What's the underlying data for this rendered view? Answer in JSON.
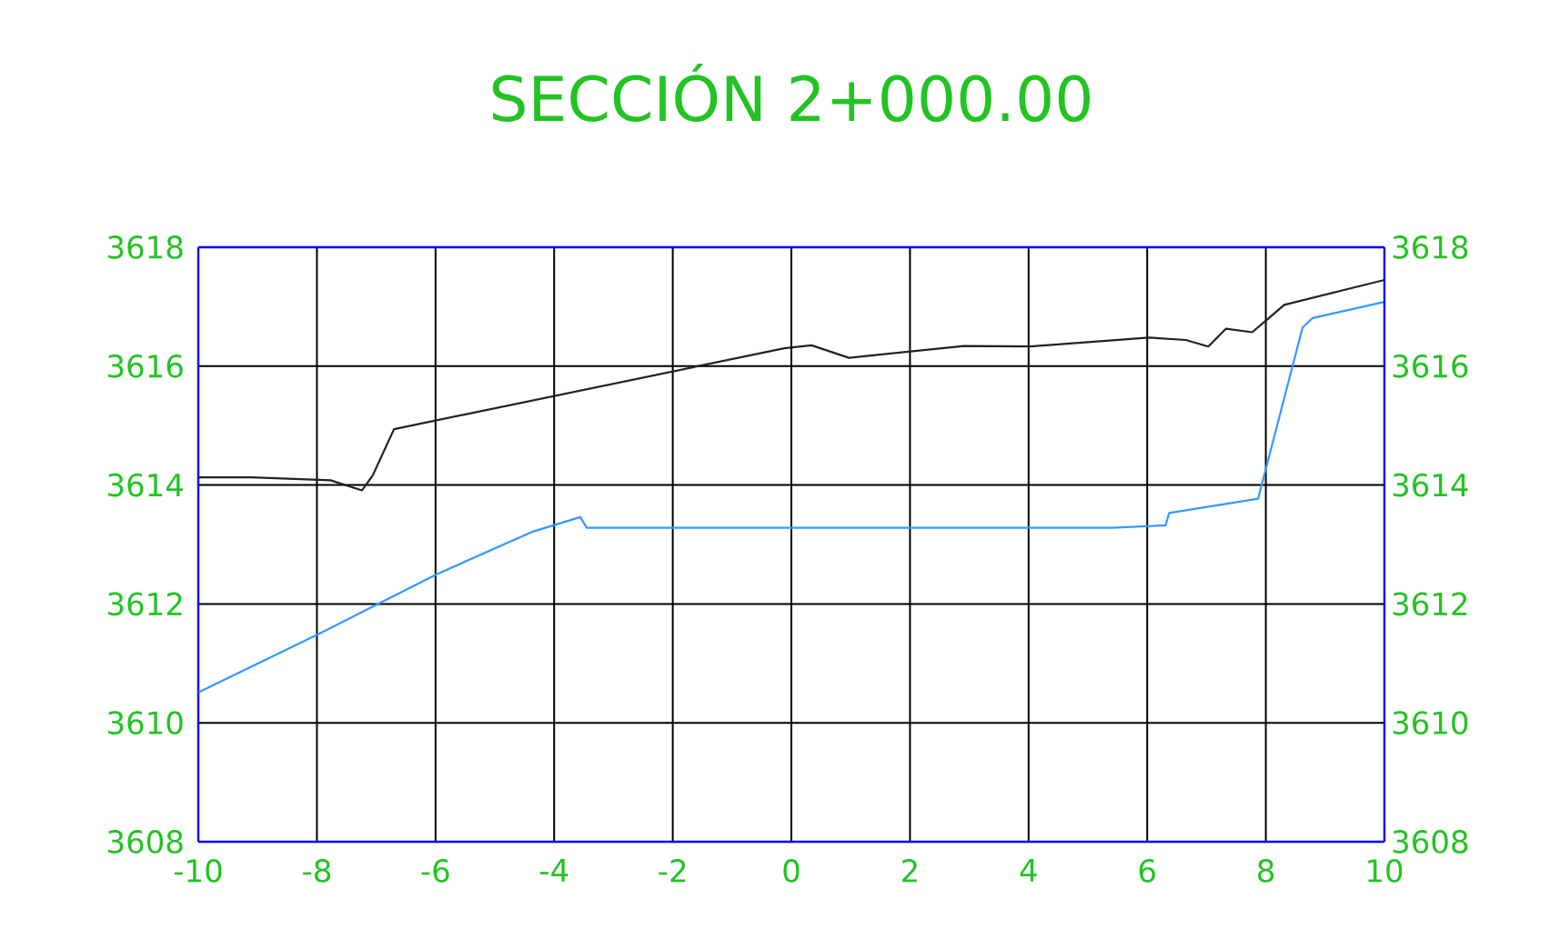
{
  "chart_data": {
    "type": "line",
    "title": "SECCIÓN  2+000.00",
    "series": [
      {
        "color": "#222222",
        "x": [
          -10,
          -9.1,
          -7.77,
          -7.24,
          -7.06,
          -6.7,
          -0.12,
          0.34,
          0.97,
          2.91,
          4.03,
          6.03,
          6.65,
          7.03,
          7.33,
          7.77,
          8.03,
          8.31,
          10
        ],
        "values": [
          3614.13,
          3614.13,
          3614.08,
          3613.91,
          3614.16,
          3614.94,
          3616.3,
          3616.35,
          3616.14,
          3616.34,
          3616.33,
          3616.48,
          3616.44,
          3616.33,
          3616.63,
          3616.57,
          3616.79,
          3617.03,
          3617.45
        ]
      },
      {
        "color": "#3399ff",
        "x": [
          -10,
          -7.98,
          -5.98,
          -4.35,
          -3.56,
          -3.45,
          5.4,
          6.24,
          6.31,
          6.37,
          7.87,
          8.62,
          8.79,
          10
        ],
        "values": [
          3610.51,
          3611.49,
          3612.5,
          3613.22,
          3613.46,
          3613.28,
          3613.28,
          3613.32,
          3613.32,
          3613.53,
          3613.77,
          3616.65,
          3616.81,
          3617.08
        ]
      }
    ],
    "xlim": [
      -10,
      10
    ],
    "xticks": [
      -10,
      -8,
      -6,
      -4,
      -2,
      0,
      2,
      4,
      6,
      8,
      10
    ],
    "ylim": [
      3608,
      3618
    ],
    "yticks": [
      3608,
      3610,
      3612,
      3614,
      3616,
      3618
    ],
    "y2lim": [
      3608,
      3618
    ],
    "y2ticks": [
      3608,
      3610,
      3612,
      3614,
      3616,
      3618
    ],
    "grid": true,
    "marker": "none",
    "line_style": "solid"
  }
}
